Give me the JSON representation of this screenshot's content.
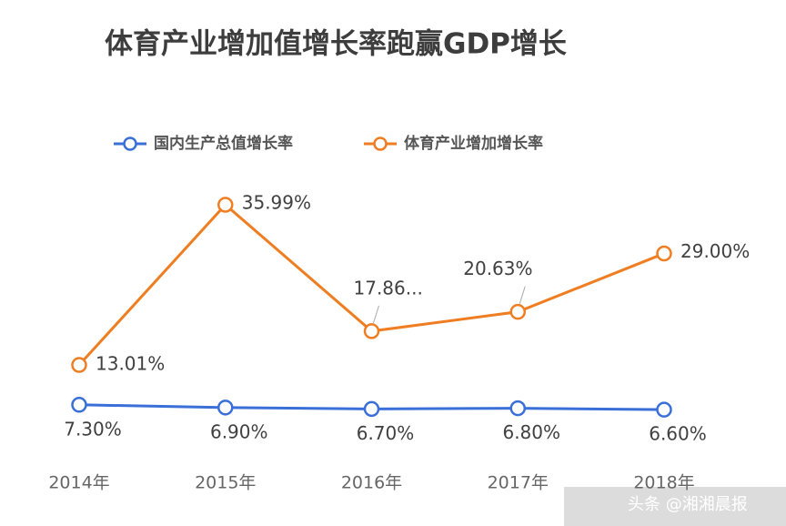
{
  "chart_data": {
    "type": "line",
    "title": "体育产业增加值增长率跑赢GDP增长",
    "categories": [
      "2014年",
      "2015年",
      "2016年",
      "2017年",
      "2018年"
    ],
    "series": [
      {
        "name": "国内生产总值增长率",
        "color": "#3a6fd8",
        "values": [
          7.3,
          6.9,
          6.7,
          6.8,
          6.6
        ],
        "value_labels": [
          "7.30%",
          "6.90%",
          "6.70%",
          "6.80%",
          "6.60%"
        ]
      },
      {
        "name": "体育产业增加增长率",
        "color": "#ef7d22",
        "values": [
          13.01,
          35.99,
          17.86,
          20.63,
          29.0
        ],
        "value_labels": [
          "13.01%",
          "35.99%",
          "17.86...",
          "20.63%",
          "29.00%"
        ]
      }
    ],
    "ylim": [
      0,
      40
    ],
    "legend": "top"
  },
  "watermark": "头条 @湘湘晨报"
}
